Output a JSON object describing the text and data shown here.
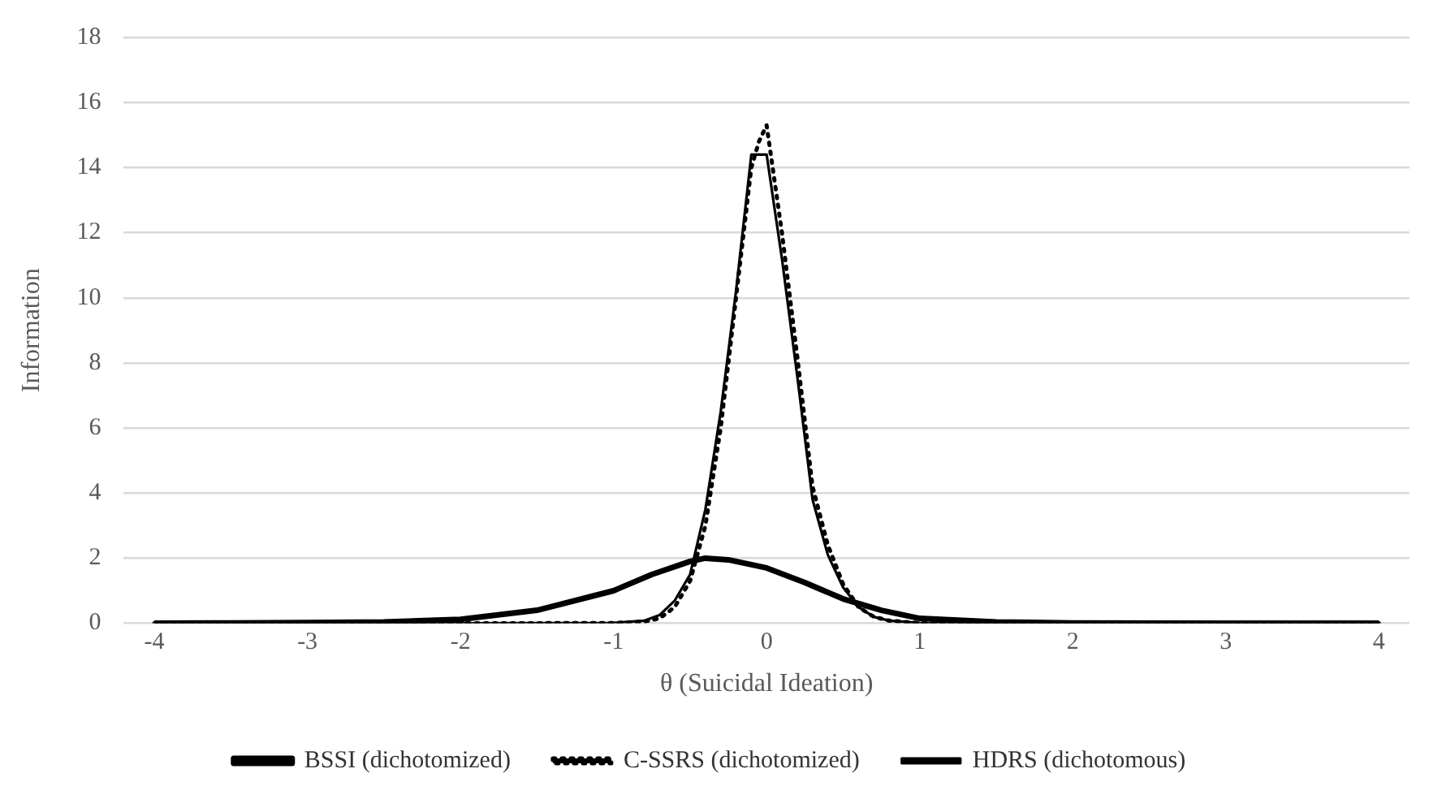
{
  "chart_data": {
    "type": "line",
    "xlabel": "θ (Suicidal Ideation)",
    "ylabel": "Information",
    "xlim": [
      -4.2,
      4.2
    ],
    "xticks": [
      -4,
      -3,
      -2,
      -1,
      0,
      1,
      2,
      3,
      4
    ],
    "ylim": [
      0,
      18
    ],
    "yticks": [
      0,
      2,
      4,
      6,
      8,
      10,
      12,
      14,
      16,
      18
    ],
    "grid": "y",
    "legend": "bottom",
    "marker": "none",
    "series": [
      {
        "name": "BSSI (dichotomized)",
        "color": "#000000",
        "line_style": "solid",
        "x": [
          -4,
          -3.5,
          -3,
          -2.5,
          -2,
          -1.5,
          -1,
          -0.75,
          -0.5,
          -0.4,
          -0.25,
          0,
          0.25,
          0.5,
          0.75,
          1,
          1.5,
          2,
          3,
          4
        ],
        "values": [
          0,
          0.01,
          0.02,
          0.04,
          0.12,
          0.4,
          1.0,
          1.5,
          1.9,
          2.0,
          1.95,
          1.7,
          1.25,
          0.75,
          0.4,
          0.15,
          0.04,
          0.01,
          0,
          0
        ]
      },
      {
        "name": "C-SSRS (dichotomized)",
        "color": "#000000",
        "line_style": "dotted",
        "x": [
          -4,
          -3,
          -2,
          -1,
          -0.8,
          -0.7,
          -0.6,
          -0.5,
          -0.4,
          -0.3,
          -0.2,
          -0.1,
          -0.05,
          0,
          0.1,
          0.2,
          0.3,
          0.4,
          0.5,
          0.6,
          0.7,
          0.8,
          1,
          2,
          3,
          4
        ],
        "values": [
          0,
          0,
          0,
          0.01,
          0.05,
          0.15,
          0.5,
          1.3,
          3.0,
          6.0,
          10.0,
          14.0,
          14.8,
          15.3,
          12.0,
          8.2,
          4.2,
          2.4,
          1.2,
          0.5,
          0.2,
          0.08,
          0.01,
          0,
          0,
          0
        ]
      },
      {
        "name": "HDRS (dichotomous)",
        "color": "#000000",
        "line_style": "solid",
        "x": [
          -4,
          -3,
          -2,
          -1,
          -0.8,
          -0.7,
          -0.6,
          -0.5,
          -0.4,
          -0.3,
          -0.2,
          -0.1,
          0,
          0.1,
          0.2,
          0.3,
          0.4,
          0.5,
          0.6,
          0.7,
          0.8,
          1,
          2,
          3,
          4
        ],
        "values": [
          0,
          0,
          0,
          0.01,
          0.08,
          0.25,
          0.7,
          1.5,
          3.5,
          6.5,
          10.2,
          14.4,
          14.4,
          11.2,
          7.6,
          3.8,
          2.1,
          1.1,
          0.5,
          0.2,
          0.08,
          0.01,
          0,
          0,
          0
        ]
      }
    ]
  }
}
